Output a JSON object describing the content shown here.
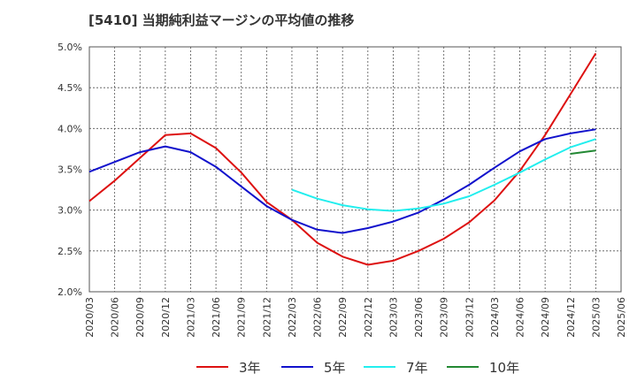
{
  "title": "[5410]  当期純利益マージンの平均値の推移",
  "chart_data": {
    "type": "line",
    "y_tick_labels": [
      "5.0%",
      "4.5%",
      "4.0%",
      "3.5%",
      "3.0%",
      "2.5%",
      "2.0%"
    ],
    "y_tick_values": [
      5.0,
      4.5,
      4.0,
      3.5,
      3.0,
      2.5,
      2.0
    ],
    "ylim": [
      2.0,
      5.0
    ],
    "x_tick_labels": [
      "2020/03",
      "2020/06",
      "2020/09",
      "2020/12",
      "2021/03",
      "2021/06",
      "2021/09",
      "2021/12",
      "2022/03",
      "2022/06",
      "2022/09",
      "2022/12",
      "2023/03",
      "2023/06",
      "2023/09",
      "2023/12",
      "2024/03",
      "2024/06",
      "2024/09",
      "2024/12",
      "2025/03",
      "2025/06"
    ],
    "grid": true,
    "legend_position": "bottom",
    "series": [
      {
        "name": "3年",
        "color": "#dd1111",
        "x": [
          "2020/03",
          "2020/06",
          "2020/09",
          "2020/12",
          "2021/03",
          "2021/06",
          "2021/09",
          "2021/12",
          "2022/03",
          "2022/06",
          "2022/09",
          "2022/12",
          "2023/03",
          "2023/06",
          "2023/09",
          "2023/12",
          "2024/03",
          "2024/06",
          "2024/09",
          "2024/12",
          "2025/03"
        ],
        "values": [
          3.11,
          3.36,
          3.64,
          3.92,
          3.94,
          3.76,
          3.46,
          3.1,
          2.88,
          2.6,
          2.43,
          2.33,
          2.38,
          2.5,
          2.65,
          2.85,
          3.12,
          3.48,
          3.92,
          4.42,
          4.92
        ]
      },
      {
        "name": "5年",
        "color": "#1111cc",
        "x": [
          "2020/03",
          "2020/06",
          "2020/09",
          "2020/12",
          "2021/03",
          "2021/06",
          "2021/09",
          "2021/12",
          "2022/03",
          "2022/06",
          "2022/09",
          "2022/12",
          "2023/03",
          "2023/06",
          "2023/09",
          "2023/12",
          "2024/03",
          "2024/06",
          "2024/09",
          "2024/12",
          "2025/03"
        ],
        "values": [
          3.47,
          3.59,
          3.71,
          3.78,
          3.71,
          3.53,
          3.29,
          3.05,
          2.88,
          2.76,
          2.72,
          2.78,
          2.86,
          2.97,
          3.13,
          3.31,
          3.52,
          3.72,
          3.87,
          3.94,
          3.99
        ]
      },
      {
        "name": "7年",
        "color": "#22eeee",
        "x": [
          "2022/03",
          "2022/06",
          "2022/09",
          "2022/12",
          "2023/03",
          "2023/06",
          "2023/09",
          "2023/12",
          "2024/03",
          "2024/06",
          "2024/09",
          "2024/12",
          "2025/03"
        ],
        "values": [
          3.25,
          3.14,
          3.06,
          3.01,
          2.99,
          3.02,
          3.08,
          3.17,
          3.31,
          3.46,
          3.62,
          3.77,
          3.87
        ]
      },
      {
        "name": "10年",
        "color": "#228833",
        "x": [
          "2024/12",
          "2025/03"
        ],
        "values": [
          3.69,
          3.73
        ]
      }
    ]
  }
}
